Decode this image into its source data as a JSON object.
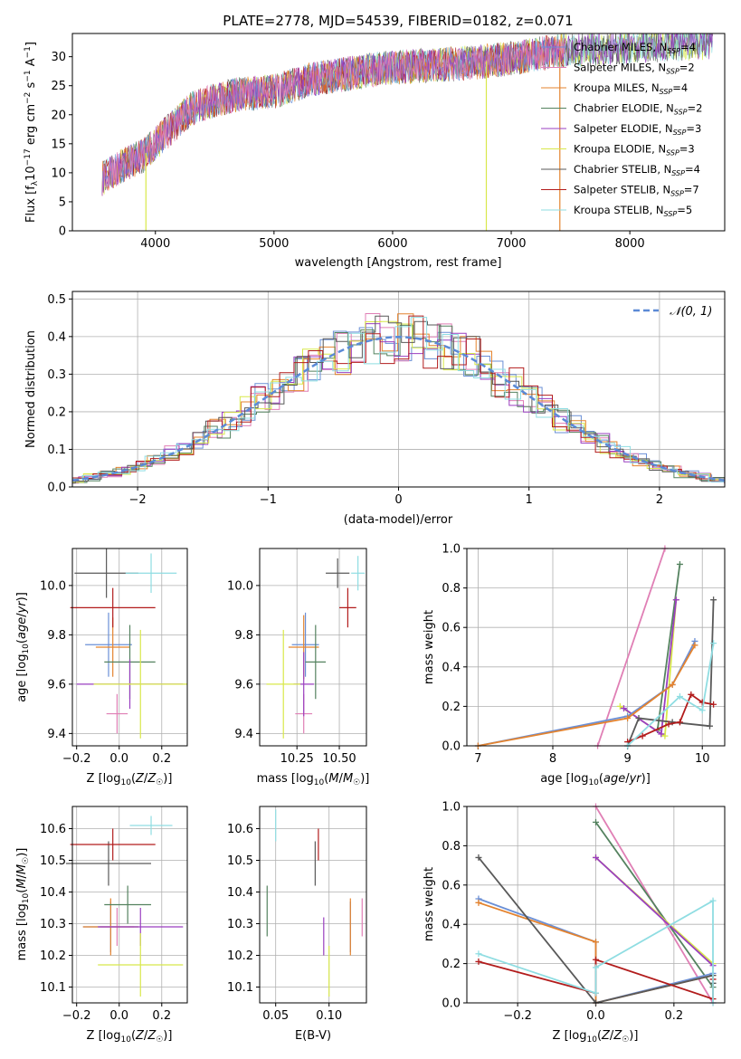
{
  "colors": {
    "chabrier_miles": "#6a8fd6",
    "salpeter_miles": "#e07fb5",
    "kroupa_miles": "#e4832e",
    "chabrier_elodie": "#54825f",
    "salpeter_elodie": "#9a3fc0",
    "kroupa_elodie": "#d8e84a",
    "chabrier_stelib": "#595959",
    "salpeter_stelib": "#b21c1c",
    "kroupa_stelib": "#8fdde2",
    "normal": "#5b8ad6",
    "grid": "#b0b0b0"
  },
  "chart_data": [
    {
      "id": "spectrum",
      "type": "line",
      "title": "PLATE=2778, MJD=54539, FIBERID=0182, z=0.071",
      "xlabel": "wavelength [Angstrom, rest frame]",
      "ylabel": "Flux [fλ10⁻¹⁷ erg cm⁻² s⁻¹ A⁻¹]",
      "xlim": [
        3300,
        8800
      ],
      "ylim": [
        0,
        34
      ],
      "xticks": [
        4000,
        5000,
        6000,
        7000,
        8000
      ],
      "yticks": [
        0,
        5,
        10,
        15,
        20,
        25,
        30
      ],
      "continuum": [
        [
          3550,
          9
        ],
        [
          3700,
          11
        ],
        [
          3900,
          13
        ],
        [
          4100,
          17
        ],
        [
          4300,
          21
        ],
        [
          4500,
          22.5
        ],
        [
          4700,
          23.5
        ],
        [
          5000,
          24
        ],
        [
          5300,
          26
        ],
        [
          5600,
          27
        ],
        [
          5900,
          28
        ],
        [
          6300,
          28.5
        ],
        [
          6700,
          29
        ],
        [
          7100,
          30
        ],
        [
          7400,
          31
        ],
        [
          7800,
          31.5
        ],
        [
          8200,
          32
        ],
        [
          8700,
          32.5
        ]
      ],
      "legend": [
        {
          "label": "Chabrier MILES, N",
          "sub": "SSP",
          "n": "=4",
          "color": "chabrier_miles"
        },
        {
          "label": "Salpeter MILES, N",
          "sub": "SSP",
          "n": "=2",
          "color": "salpeter_miles"
        },
        {
          "label": "Kroupa MILES, N",
          "sub": "SSP",
          "n": "=4",
          "color": "kroupa_miles"
        },
        {
          "label": "Chabrier ELODIE, N",
          "sub": "SSP",
          "n": "=2",
          "color": "chabrier_elodie"
        },
        {
          "label": "Salpeter ELODIE, N",
          "sub": "SSP",
          "n": "=3",
          "color": "salpeter_elodie"
        },
        {
          "label": "Kroupa ELODIE, N",
          "sub": "SSP",
          "n": "=3",
          "color": "kroupa_elodie"
        },
        {
          "label": "Chabrier STELIB, N",
          "sub": "SSP",
          "n": "=4",
          "color": "chabrier_stelib"
        },
        {
          "label": "Salpeter STELIB, N",
          "sub": "SSP",
          "n": "=7",
          "color": "salpeter_stelib"
        },
        {
          "label": "Kroupa STELIB, N",
          "sub": "SSP",
          "n": "=5",
          "color": "kroupa_stelib"
        }
      ]
    },
    {
      "id": "residuals",
      "type": "line",
      "xlabel": "(data-model)/error",
      "ylabel": "Normed distribution",
      "xlim": [
        -2.5,
        2.5
      ],
      "ylim": [
        0,
        0.52
      ],
      "xticks": [
        -2,
        -1,
        0,
        1,
        2
      ],
      "xtick_labels": [
        "−2",
        "−1",
        "0",
        "1",
        "2"
      ],
      "yticks": [
        0.0,
        0.1,
        0.2,
        0.3,
        0.4,
        0.5
      ],
      "ytick_labels": [
        "0.0",
        "0.1",
        "0.2",
        "0.3",
        "0.4",
        "0.5"
      ],
      "legend": [
        {
          "label": "𝒩(0, 1)",
          "color": "normal"
        }
      ]
    },
    {
      "id": "z_age",
      "type": "scatter",
      "xlabel": "Z [log10(Z/Z☉)]",
      "ylabel": "age  [log10(age/yr)]",
      "xlim": [
        -0.22,
        0.32
      ],
      "ylim": [
        9.35,
        10.15
      ],
      "xticks": [
        -0.2,
        0.0,
        0.2
      ],
      "xtick_labels": [
        "−0.2",
        "0.0",
        "0.2"
      ],
      "yticks": [
        9.4,
        9.6,
        9.8,
        10.0
      ],
      "ytick_labels": [
        "9.4",
        "9.6",
        "9.8",
        "10.0"
      ],
      "points": [
        {
          "c": "chabrier_miles",
          "x": -0.05,
          "xe": 0.11,
          "y": 9.76,
          "ye": 0.13
        },
        {
          "c": "salpeter_miles",
          "x": -0.01,
          "xe": 0.05,
          "y": 9.48,
          "ye": 0.08
        },
        {
          "c": "kroupa_miles",
          "x": -0.03,
          "xe": 0.08,
          "y": 9.75,
          "ye": 0.12
        },
        {
          "c": "chabrier_elodie",
          "x": 0.05,
          "xe": 0.12,
          "y": 9.69,
          "ye": 0.15
        },
        {
          "c": "salpeter_elodie",
          "x": 0.05,
          "xe": 0.25,
          "y": 9.6,
          "ye": 0.1
        },
        {
          "c": "kroupa_elodie",
          "x": 0.1,
          "xe": 0.22,
          "y": 9.6,
          "ye": 0.22
        },
        {
          "c": "chabrier_stelib",
          "x": -0.06,
          "xe": 0.15,
          "y": 10.05,
          "ye": 0.1
        },
        {
          "c": "salpeter_stelib",
          "x": -0.03,
          "xe": 0.2,
          "y": 9.91,
          "ye": 0.08
        },
        {
          "c": "kroupa_stelib",
          "x": 0.15,
          "xe": 0.12,
          "y": 10.05,
          "ye": 0.08
        }
      ]
    },
    {
      "id": "mass_age",
      "type": "scatter",
      "xlabel": "mass [log10(M/M☉)]",
      "ylabel": "",
      "xlim": [
        10.03,
        10.66
      ],
      "ylim": [
        9.35,
        10.15
      ],
      "xticks": [
        10.25,
        10.5
      ],
      "xtick_labels": [
        "10.25",
        "10.50"
      ],
      "yticks": [
        9.4,
        9.6,
        9.8,
        10.0
      ],
      "ytick_labels": [
        "9.4",
        "9.6",
        "9.8",
        "10.0"
      ],
      "points": [
        {
          "c": "chabrier_miles",
          "x": 10.3,
          "xe": 0.08,
          "y": 9.76,
          "ye": 0.13
        },
        {
          "c": "salpeter_miles",
          "x": 10.29,
          "xe": 0.05,
          "y": 9.48,
          "ye": 0.08
        },
        {
          "c": "kroupa_miles",
          "x": 10.29,
          "xe": 0.09,
          "y": 9.75,
          "ye": 0.13
        },
        {
          "c": "chabrier_elodie",
          "x": 10.36,
          "xe": 0.06,
          "y": 9.69,
          "ye": 0.15
        },
        {
          "c": "salpeter_elodie",
          "x": 10.29,
          "xe": 0.06,
          "y": 9.6,
          "ye": 0.13
        },
        {
          "c": "kroupa_elodie",
          "x": 10.17,
          "xe": 0.1,
          "y": 9.6,
          "ye": 0.22
        },
        {
          "c": "chabrier_stelib",
          "x": 10.49,
          "xe": 0.07,
          "y": 10.05,
          "ye": 0.06
        },
        {
          "c": "salpeter_stelib",
          "x": 10.55,
          "xe": 0.05,
          "y": 9.91,
          "ye": 0.08
        },
        {
          "c": "kroupa_stelib",
          "x": 10.61,
          "xe": 0.04,
          "y": 10.05,
          "ye": 0.07
        }
      ]
    },
    {
      "id": "age_weight",
      "type": "line",
      "xlabel": "age  [log10(age/yr)]",
      "ylabel": "mass weight",
      "xlim": [
        6.85,
        10.3
      ],
      "ylim": [
        0,
        1
      ],
      "xticks": [
        7,
        8,
        9,
        10
      ],
      "xtick_labels": [
        "7",
        "8",
        "9",
        "10"
      ],
      "yticks": [
        0,
        0.2,
        0.4,
        0.6,
        0.8,
        1.0
      ],
      "ytick_labels": [
        "0.0",
        "0.2",
        "0.4",
        "0.6",
        "0.8",
        "1.0"
      ],
      "series": [
        {
          "c": "salpeter_miles",
          "points": [
            [
              8.6,
              0.0
            ],
            [
              9.5,
              1.0
            ]
          ]
        },
        {
          "c": "chabrier_elodie",
          "points": [
            [
              9.4,
              0.08
            ],
            [
              9.7,
              0.92
            ]
          ]
        },
        {
          "c": "kroupa_elodie",
          "points": [
            [
              8.9,
              0.2
            ],
            [
              9.5,
              0.05
            ],
            [
              9.65,
              0.74
            ]
          ]
        },
        {
          "c": "salpeter_elodie",
          "points": [
            [
              8.95,
              0.19
            ],
            [
              9.45,
              0.06
            ],
            [
              9.65,
              0.74
            ]
          ]
        },
        {
          "c": "chabrier_miles",
          "points": [
            [
              7.0,
              0.0
            ],
            [
              9.0,
              0.15
            ],
            [
              9.6,
              0.31
            ],
            [
              9.9,
              0.53
            ]
          ]
        },
        {
          "c": "kroupa_miles",
          "points": [
            [
              7.0,
              0.0
            ],
            [
              9.0,
              0.14
            ],
            [
              9.6,
              0.31
            ],
            [
              9.9,
              0.51
            ]
          ]
        },
        {
          "c": "chabrier_stelib",
          "points": [
            [
              9.0,
              0.0
            ],
            [
              9.15,
              0.14
            ],
            [
              9.6,
              0.12
            ],
            [
              10.1,
              0.1
            ],
            [
              10.15,
              0.74
            ]
          ]
        },
        {
          "c": "salpeter_stelib",
          "points": [
            [
              9.0,
              0.02
            ],
            [
              9.2,
              0.05
            ],
            [
              9.55,
              0.11
            ],
            [
              9.7,
              0.12
            ],
            [
              9.85,
              0.26
            ],
            [
              10.0,
              0.22
            ],
            [
              10.15,
              0.21
            ]
          ]
        },
        {
          "c": "kroupa_stelib",
          "points": [
            [
              9.0,
              0.0
            ],
            [
              9.7,
              0.25
            ],
            [
              10.0,
              0.18
            ],
            [
              10.15,
              0.52
            ]
          ]
        }
      ]
    },
    {
      "id": "z_mass",
      "type": "scatter",
      "xlabel": "Z [log10(Z/Z☉)]",
      "ylabel": "mass [log10(M/M☉)]",
      "xlim": [
        -0.22,
        0.32
      ],
      "ylim": [
        10.05,
        10.67
      ],
      "xticks": [
        -0.2,
        0.0,
        0.2
      ],
      "xtick_labels": [
        "−0.2",
        "0.0",
        "0.2"
      ],
      "yticks": [
        10.1,
        10.2,
        10.3,
        10.4,
        10.5,
        10.6
      ],
      "ytick_labels": [
        "10.1",
        "10.2",
        "10.3",
        "10.4",
        "10.5",
        "10.6"
      ],
      "points": [
        {
          "c": "chabrier_miles",
          "x": -0.04,
          "xe": 0.13,
          "y": 10.29,
          "ye": 0.08
        },
        {
          "c": "salpeter_miles",
          "x": -0.01,
          "xe": 0.08,
          "y": 10.29,
          "ye": 0.06
        },
        {
          "c": "kroupa_miles",
          "x": -0.04,
          "xe": 0.13,
          "y": 10.29,
          "ye": 0.09
        },
        {
          "c": "chabrier_elodie",
          "x": 0.04,
          "xe": 0.11,
          "y": 10.36,
          "ye": 0.06
        },
        {
          "c": "salpeter_elodie",
          "x": 0.1,
          "xe": 0.2,
          "y": 10.29,
          "ye": 0.06
        },
        {
          "c": "kroupa_elodie",
          "x": 0.1,
          "xe": 0.2,
          "y": 10.17,
          "ye": 0.1
        },
        {
          "c": "chabrier_stelib",
          "x": -0.05,
          "xe": 0.2,
          "y": 10.49,
          "ye": 0.07
        },
        {
          "c": "salpeter_stelib",
          "x": -0.03,
          "xe": 0.2,
          "y": 10.55,
          "ye": 0.05
        },
        {
          "c": "kroupa_stelib",
          "x": 0.15,
          "xe": 0.1,
          "y": 10.61,
          "ye": 0.03
        }
      ]
    },
    {
      "id": "ebv_mass",
      "type": "scatter",
      "xlabel": "E(B-V)",
      "ylabel": "",
      "xlim": [
        0.035,
        0.135
      ],
      "ylim": [
        10.05,
        10.67
      ],
      "xticks": [
        0.05,
        0.1
      ],
      "xtick_labels": [
        "0.05",
        "0.10"
      ],
      "yticks": [
        10.1,
        10.2,
        10.3,
        10.4,
        10.5,
        10.6
      ],
      "ytick_labels": [
        "10.1",
        "10.2",
        "10.3",
        "10.4",
        "10.5",
        "10.6"
      ],
      "points": [
        {
          "c": "chabrier_miles",
          "x": 0.12,
          "xe": 0.0,
          "y": 10.29,
          "ye": 0.08
        },
        {
          "c": "salpeter_miles",
          "x": 0.131,
          "xe": 0.0,
          "y": 10.32,
          "ye": 0.06
        },
        {
          "c": "kroupa_miles",
          "x": 0.12,
          "xe": 0.0,
          "y": 10.29,
          "ye": 0.09
        },
        {
          "c": "chabrier_elodie",
          "x": 0.042,
          "xe": 0.0,
          "y": 10.34,
          "ye": 0.08
        },
        {
          "c": "salpeter_elodie",
          "x": 0.095,
          "xe": 0.0,
          "y": 10.26,
          "ye": 0.06
        },
        {
          "c": "kroupa_elodie",
          "x": 0.1,
          "xe": 0.0,
          "y": 10.15,
          "ye": 0.08
        },
        {
          "c": "chabrier_stelib",
          "x": 0.087,
          "xe": 0.0,
          "y": 10.49,
          "ye": 0.07
        },
        {
          "c": "salpeter_stelib",
          "x": 0.09,
          "xe": 0.0,
          "y": 10.55,
          "ye": 0.05
        },
        {
          "c": "kroupa_stelib",
          "x": 0.05,
          "xe": 0.0,
          "y": 10.61,
          "ye": 0.05
        }
      ]
    },
    {
      "id": "z_weight",
      "type": "line",
      "xlabel": "Z [log10(Z/Z☉)]",
      "ylabel": "mass weight",
      "xlim": [
        -0.33,
        0.33
      ],
      "ylim": [
        0,
        1
      ],
      "xticks": [
        -0.2,
        0.0,
        0.2
      ],
      "xtick_labels": [
        "−0.2",
        "0.0",
        "0.2"
      ],
      "yticks": [
        0,
        0.2,
        0.4,
        0.6,
        0.8,
        1.0
      ],
      "ytick_labels": [
        "0.0",
        "0.2",
        "0.4",
        "0.6",
        "0.8",
        "1.0"
      ],
      "series": [
        {
          "c": "salpeter_miles",
          "points": [
            [
              0.0,
              1.0
            ],
            [
              0.3,
              0.0
            ]
          ]
        },
        {
          "c": "chabrier_elodie",
          "points": [
            [
              0.0,
              0.92
            ],
            [
              0.3,
              0.08
            ]
          ]
        },
        {
          "c": "kroupa_elodie",
          "points": [
            [
              0.0,
              0.74
            ],
            [
              0.3,
              0.2
            ]
          ]
        },
        {
          "c": "salpeter_elodie",
          "points": [
            [
              0.0,
              0.74
            ],
            [
              0.3,
              0.19
            ]
          ]
        },
        {
          "c": "chabrier_miles",
          "points": [
            [
              -0.3,
              0.53
            ],
            [
              0.0,
              0.31
            ],
            [
              0.0,
              0.0
            ],
            [
              0.3,
              0.15
            ]
          ]
        },
        {
          "c": "kroupa_miles",
          "points": [
            [
              -0.3,
              0.51
            ],
            [
              0.0,
              0.31
            ],
            [
              0.0,
              0.0
            ],
            [
              0.3,
              0.14
            ]
          ]
        },
        {
          "c": "chabrier_stelib",
          "points": [
            [
              -0.3,
              0.74
            ],
            [
              0.0,
              0.0
            ],
            [
              0.3,
              0.14
            ],
            [
              0.3,
              0.1
            ]
          ]
        },
        {
          "c": "salpeter_stelib",
          "points": [
            [
              -0.3,
              0.21
            ],
            [
              0.0,
              0.05
            ],
            [
              0.0,
              0.22
            ],
            [
              0.3,
              0.02
            ],
            [
              0.3,
              0.12
            ]
          ]
        },
        {
          "c": "kroupa_stelib",
          "points": [
            [
              -0.3,
              0.25
            ],
            [
              0.0,
              0.05
            ],
            [
              0.0,
              0.18
            ],
            [
              0.3,
              0.52
            ],
            [
              0.3,
              0.0
            ]
          ]
        }
      ]
    }
  ]
}
